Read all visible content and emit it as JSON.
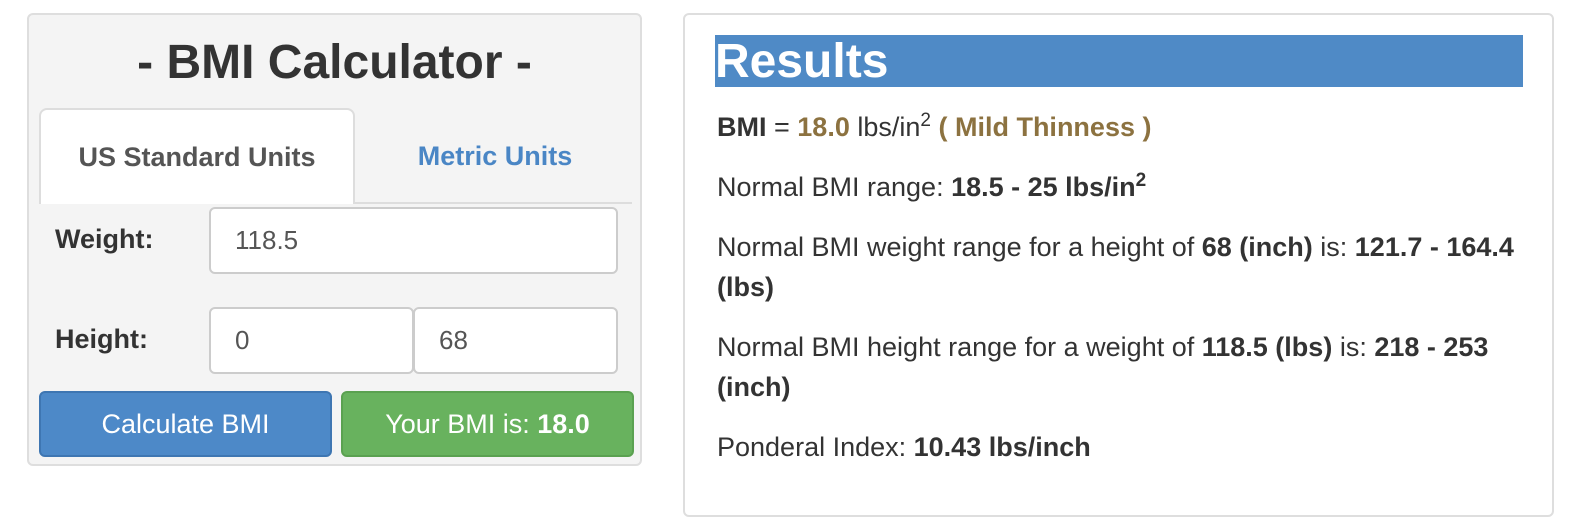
{
  "calculator": {
    "title": "- BMI Calculator -",
    "tabs": [
      {
        "label": "US Standard Units",
        "active": true
      },
      {
        "label": "Metric Units",
        "active": false
      }
    ],
    "weight": {
      "label": "Weight:",
      "value": "118.5"
    },
    "height": {
      "label": "Height:",
      "feet_value": "0",
      "inches_value": "68"
    },
    "calculate_button": "Calculate BMI",
    "result_button": {
      "prefix": "Your BMI is: ",
      "value": "18.0"
    }
  },
  "results": {
    "title": "Results",
    "bmi_line": {
      "label": "BMI",
      "equals": " = ",
      "value": "18.0",
      "unit": " lbs/in",
      "unit_exp": "2",
      "category": " ( Mild Thinness )"
    },
    "normal_range": {
      "label": "Normal BMI range: ",
      "value": "18.5 - 25 lbs/in",
      "exp": "2"
    },
    "weight_range": {
      "prefix": "Normal BMI weight range for a height of ",
      "height": "68 (inch)",
      "middle": " is: ",
      "range": "121.7 - 164.4 (lbs)"
    },
    "height_range": {
      "prefix": "Normal BMI height range for a weight of ",
      "weight": "118.5 (lbs)",
      "middle": " is: ",
      "range": "218 - 253 (inch)"
    },
    "ponderal": {
      "label": "Ponderal Index: ",
      "value": "10.43 lbs/inch"
    }
  },
  "colors": {
    "accent_blue": "#4f8ac6",
    "success_green": "#68b25e",
    "category_brown": "#8c7240"
  }
}
